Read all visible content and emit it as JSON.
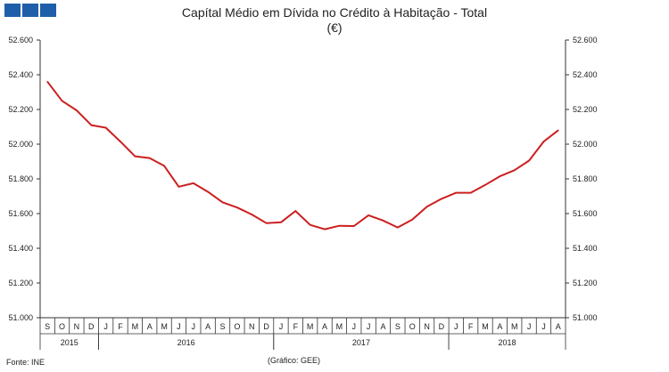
{
  "title": "Capítal Médio em Dívida no Crédito à Habitação - Total",
  "subtitle": "(€)",
  "footer": {
    "source": "Fonte: INE",
    "graph": "(Gráfico: GEE)"
  },
  "colors": {
    "brand": "#1f5ea8",
    "line": "#cc1f1f",
    "axis": "#333333"
  },
  "chart_data": {
    "type": "line",
    "title": "Capítal Médio em Dívida no Crédito à Habitação - Total",
    "subtitle": "(€)",
    "ylim": [
      51000,
      52600
    ],
    "yticks": [
      51000,
      51200,
      51400,
      51600,
      51800,
      52000,
      52200,
      52400,
      52600
    ],
    "ytick_labels": [
      "51.000",
      "51.200",
      "51.400",
      "51.600",
      "51.800",
      "52.000",
      "52.200",
      "52.400",
      "52.600"
    ],
    "grid": false,
    "months": [
      "S",
      "O",
      "N",
      "D",
      "J",
      "F",
      "M",
      "A",
      "M",
      "J",
      "J",
      "A",
      "S",
      "O",
      "N",
      "D",
      "J",
      "F",
      "M",
      "A",
      "M",
      "J",
      "J",
      "A",
      "S",
      "O",
      "N",
      "D",
      "J",
      "F",
      "M",
      "A",
      "M",
      "J",
      "J",
      "A"
    ],
    "years": [
      {
        "label": "2015",
        "start": 0,
        "end": 3
      },
      {
        "label": "2016",
        "start": 4,
        "end": 15
      },
      {
        "label": "2017",
        "start": 16,
        "end": 27
      },
      {
        "label": "2018",
        "start": 28,
        "end": 35
      }
    ],
    "series": [
      {
        "values": [
          52360,
          52250,
          52195,
          52110,
          52095,
          52015,
          51930,
          51920,
          51875,
          51755,
          51775,
          51725,
          51665,
          51635,
          51595,
          51545,
          51550,
          51615,
          51535,
          51510,
          51530,
          51528,
          51590,
          51560,
          51520,
          51565,
          51640,
          51685,
          51720,
          51720,
          51765,
          51815,
          51850,
          51905,
          52015,
          52080
        ]
      }
    ]
  }
}
